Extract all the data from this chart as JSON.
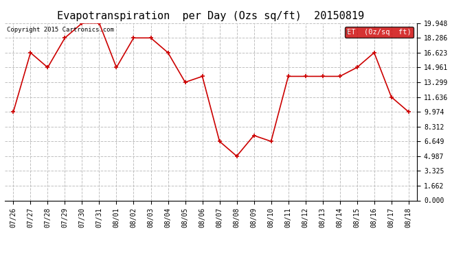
{
  "title": "Evapotranspiration  per Day (Ozs sq/ft)  20150819",
  "copyright": "Copyright 2015 Cartronics.com",
  "legend_label": "ET  (0z/sq  ft)",
  "x_labels": [
    "07/26",
    "07/27",
    "07/28",
    "07/29",
    "07/30",
    "07/31",
    "08/01",
    "08/02",
    "08/03",
    "08/04",
    "08/05",
    "08/06",
    "08/07",
    "08/08",
    "08/09",
    "08/10",
    "08/11",
    "08/12",
    "08/13",
    "08/14",
    "08/15",
    "08/16",
    "08/17",
    "08/18"
  ],
  "y_values": [
    9.974,
    16.623,
    14.961,
    18.286,
    19.948,
    19.948,
    14.961,
    18.286,
    18.286,
    16.623,
    13.299,
    13.961,
    6.649,
    4.987,
    7.311,
    6.649,
    13.961,
    13.961,
    13.961,
    13.961,
    14.961,
    16.623,
    11.636,
    9.974
  ],
  "y_ticks": [
    0.0,
    1.662,
    3.325,
    4.987,
    6.649,
    8.312,
    9.974,
    11.636,
    13.299,
    14.961,
    16.623,
    18.286,
    19.948
  ],
  "line_color": "#cc0000",
  "marker_color": "#cc0000",
  "bg_color": "#ffffff",
  "grid_color": "#c0c0c0",
  "title_fontsize": 11,
  "copyright_fontsize": 6.5,
  "tick_fontsize": 7,
  "legend_bg": "#cc0000",
  "legend_text_color": "#ffffff",
  "legend_fontsize": 7.5,
  "figwidth": 6.9,
  "figheight": 3.75,
  "dpi": 100
}
